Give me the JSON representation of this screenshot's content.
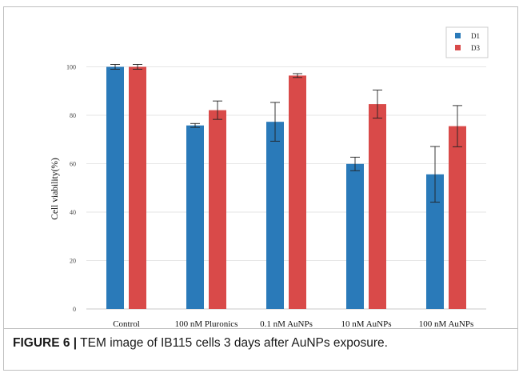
{
  "caption": {
    "label": "FIGURE 6 |",
    "text": " TEM image of IB115 cells 3 days after AuNPs exposure."
  },
  "chart_data": {
    "type": "bar",
    "title": "",
    "xlabel": "",
    "ylabel": "Cell viability(%)",
    "ylim": [
      0,
      100
    ],
    "yticks": [
      0,
      20,
      40,
      60,
      80,
      100
    ],
    "grid": true,
    "legend_position": "top-right",
    "categories": [
      "Control",
      "100 nM Pluronics",
      "0.1 nM AuNPs",
      "10 nM AuNPs",
      "100 nM AuNPs"
    ],
    "series": [
      {
        "name": "D1",
        "color": "#2a7ab9",
        "values": [
          100,
          75.8,
          77.3,
          59.9,
          55.6
        ],
        "errors": [
          1,
          0.8,
          8,
          2.8,
          11.5
        ]
      },
      {
        "name": "D3",
        "color": "#d94a49",
        "values": [
          100,
          82.1,
          96.4,
          84.6,
          75.5
        ],
        "errors": [
          1,
          3.8,
          0.8,
          5.8,
          8.5
        ]
      }
    ]
  }
}
